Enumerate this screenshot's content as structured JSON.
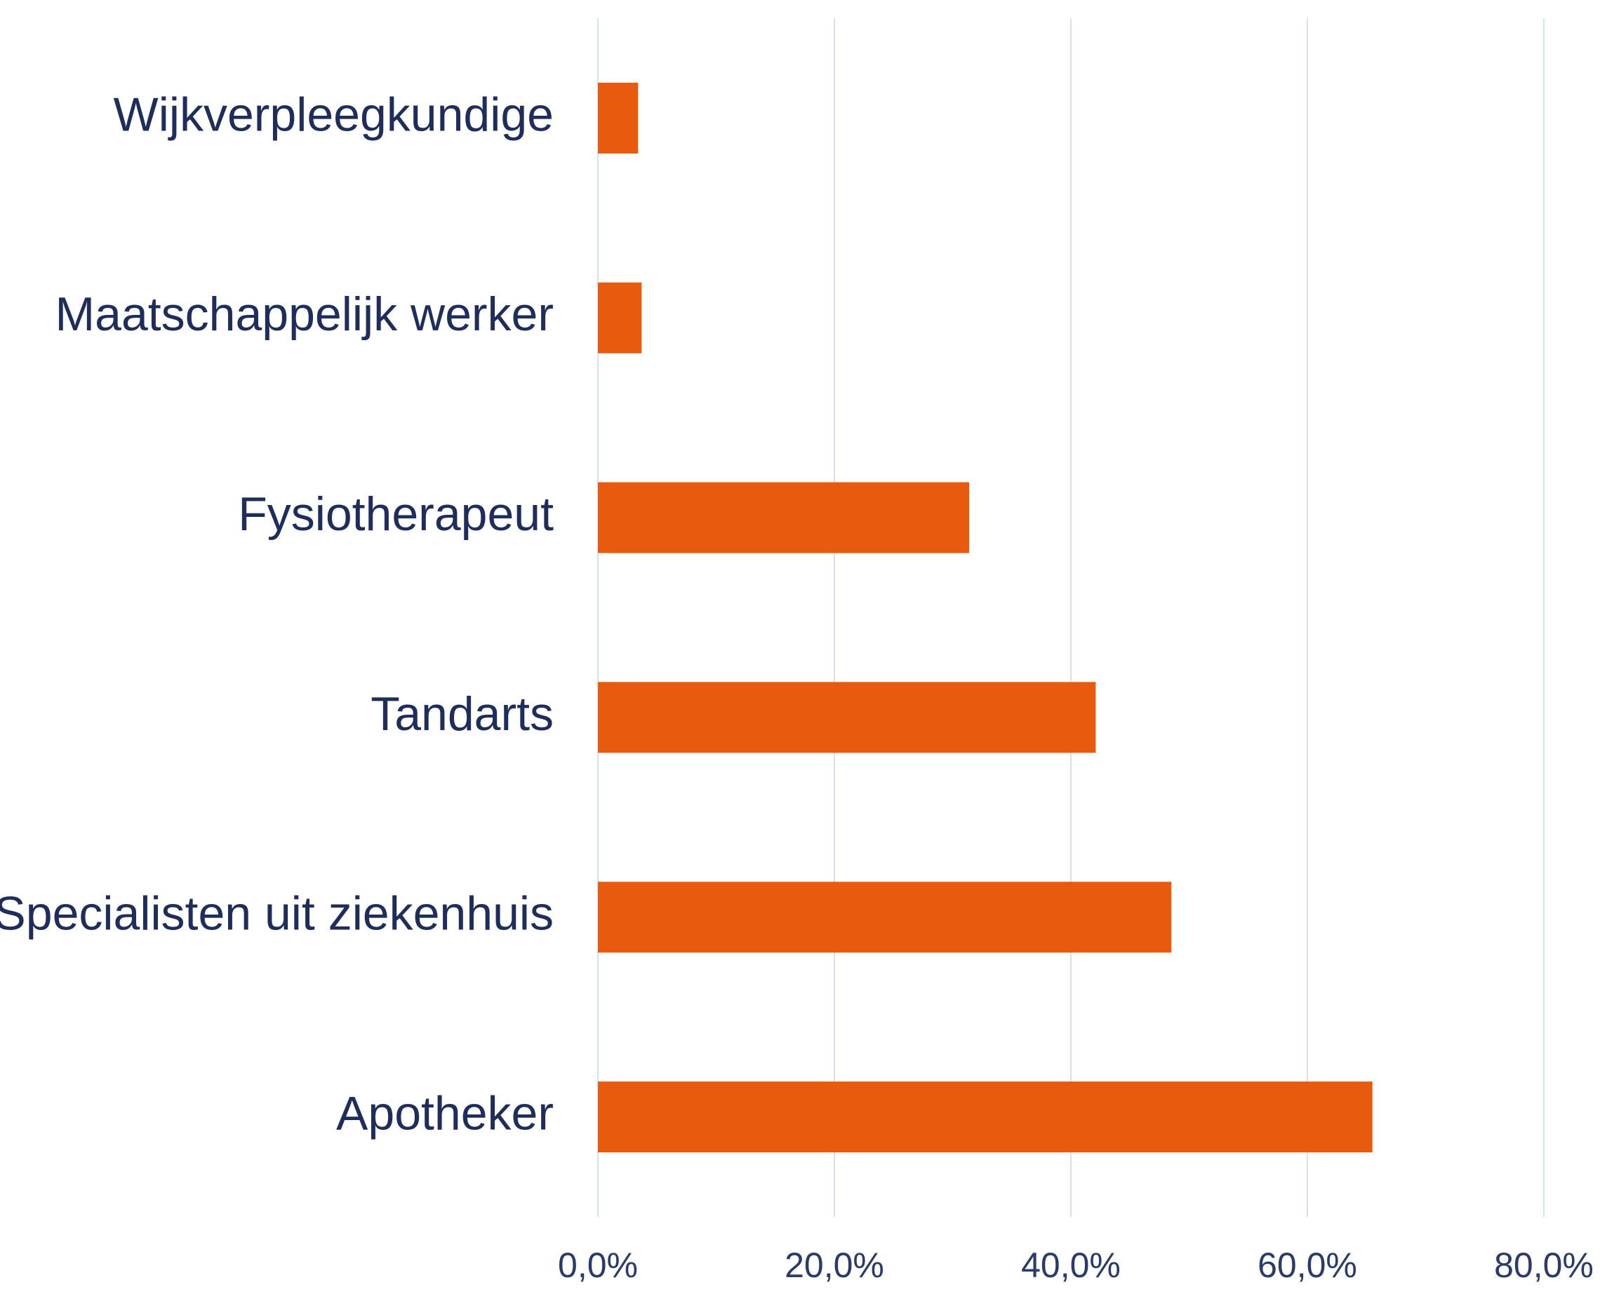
{
  "chart_data": {
    "type": "bar",
    "orientation": "horizontal",
    "categories": [
      "Wijkverpleegkundige",
      "Maatschappelijk werker",
      "Fysiotherapeut",
      "Tandarts",
      "Specialisten uit ziekenhuis",
      "Apotheker"
    ],
    "values": [
      3.4,
      3.7,
      31.4,
      42.1,
      48.5,
      65.5
    ],
    "color": "#e85a0e",
    "xlim": [
      0,
      80
    ],
    "xticks": [
      {
        "value": 0,
        "label": "0,0%"
      },
      {
        "value": 20,
        "label": "20,0%"
      },
      {
        "value": 40,
        "label": "40,0%"
      },
      {
        "value": 60,
        "label": "60,0%"
      },
      {
        "value": 80,
        "label": "80,0%"
      }
    ],
    "grid": true
  }
}
